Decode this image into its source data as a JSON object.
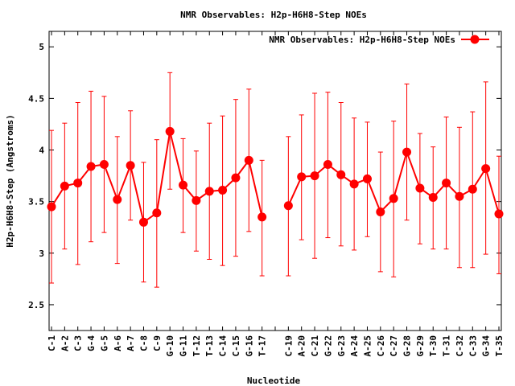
{
  "chart_data": {
    "type": "line",
    "title": "NMR Observables: H2p-H6H8-Step NOEs",
    "xlabel": "Nucleotide",
    "ylabel": "H2p-H6H8-Step (Angstroms)",
    "ylim": [
      2.25,
      5.15
    ],
    "yticks": [
      "2.5",
      "3",
      "3.5",
      "4",
      "4.5",
      "5"
    ],
    "legend_position": "top-right",
    "categories": [
      "C-1",
      "A-2",
      "C-3",
      "G-4",
      "G-5",
      "A-6",
      "A-7",
      "C-8",
      "C-9",
      "G-10",
      "G-11",
      "T-12",
      "T-13",
      "C-14",
      "C-15",
      "G-16",
      "T-17",
      "",
      "C-19",
      "A-20",
      "C-21",
      "G-22",
      "G-23",
      "A-24",
      "A-25",
      "C-26",
      "C-27",
      "G-28",
      "G-29",
      "T-30",
      "T-31",
      "C-32",
      "C-33",
      "G-34",
      "T-35"
    ],
    "series": [
      {
        "name": "NMR Observables: H2p-H6H8-Step NOEs",
        "color": "#ff0000",
        "values": [
          3.45,
          3.65,
          3.68,
          3.84,
          3.86,
          3.52,
          3.85,
          3.3,
          3.39,
          4.18,
          3.66,
          3.51,
          3.6,
          3.61,
          3.73,
          3.9,
          3.35,
          null,
          3.46,
          3.74,
          3.75,
          3.86,
          3.76,
          3.67,
          3.72,
          3.4,
          3.53,
          3.98,
          3.63,
          3.54,
          3.68,
          3.55,
          3.62,
          3.82,
          3.38
        ],
        "error_low": [
          2.71,
          3.04,
          2.89,
          3.11,
          3.2,
          2.9,
          3.32,
          2.72,
          2.67,
          3.62,
          3.2,
          3.02,
          2.94,
          2.88,
          2.97,
          3.21,
          2.78,
          null,
          2.78,
          3.13,
          2.95,
          3.15,
          3.07,
          3.03,
          3.16,
          2.82,
          2.77,
          3.32,
          3.09,
          3.04,
          3.04,
          2.86,
          2.86,
          2.99,
          2.8
        ],
        "error_high": [
          4.19,
          4.26,
          4.46,
          4.57,
          4.52,
          4.13,
          4.38,
          3.88,
          4.1,
          4.75,
          4.11,
          3.99,
          4.26,
          4.33,
          4.49,
          4.59,
          3.9,
          null,
          4.13,
          4.34,
          4.55,
          4.56,
          4.46,
          4.31,
          4.27,
          3.98,
          4.28,
          4.64,
          4.16,
          4.03,
          4.32,
          4.22,
          4.37,
          4.66,
          3.94
        ]
      }
    ]
  }
}
